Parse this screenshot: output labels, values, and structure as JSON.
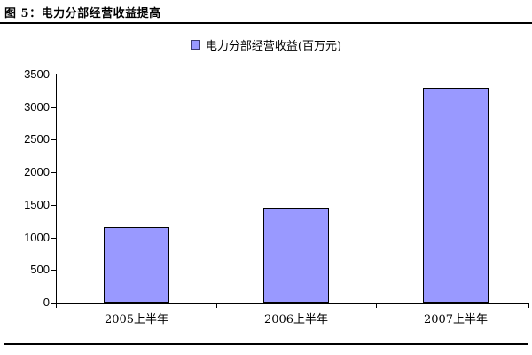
{
  "header": {
    "title": "图 5：电力分部经营收益提高"
  },
  "chart_data": {
    "type": "bar",
    "title": "图 5：电力分部经营收益提高",
    "legend": "电力分部经营收益(百万元)",
    "legend_position": "top-center",
    "categories": [
      "2005上半年",
      "2006上半年",
      "2007上半年"
    ],
    "values": [
      1160,
      1460,
      3300
    ],
    "xlabel": "",
    "ylabel": "",
    "ylim": [
      0,
      3500
    ],
    "ytick_step": 500,
    "ytick_labels": [
      "0",
      "500",
      "1000",
      "1500",
      "2000",
      "2500",
      "3000",
      "3500"
    ],
    "grid": false,
    "colors": {
      "bar_fill": "#9999ff",
      "bar_border": "#000000",
      "axis": "#000000",
      "text": "#000000",
      "background": "#ffffff"
    }
  }
}
